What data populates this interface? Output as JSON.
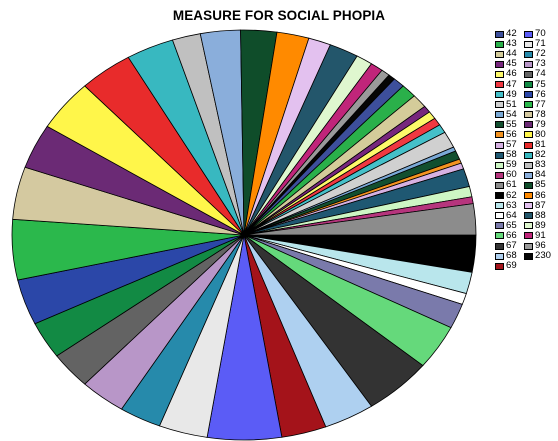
{
  "chart_data": {
    "type": "pie",
    "title": "MEASURE FOR SOCIAL PHOPIA",
    "slices": [
      {
        "label": "42",
        "value": 1,
        "color": "#3d4f9c"
      },
      {
        "label": "43",
        "value": 1,
        "color": "#2ab04a"
      },
      {
        "label": "44",
        "value": 1,
        "color": "#d4cc9a"
      },
      {
        "label": "45",
        "value": 1,
        "color": "#77277d"
      },
      {
        "label": "46",
        "value": 1,
        "color": "#fdf96a"
      },
      {
        "label": "47",
        "value": 1,
        "color": "#f03841"
      },
      {
        "label": "49",
        "value": 1,
        "color": "#45c0c9"
      },
      {
        "label": "51",
        "value": 1,
        "color": "#d0d0d0"
      },
      {
        "label": "54",
        "value": 1,
        "color": "#7aa9d6"
      },
      {
        "label": "55",
        "value": 1,
        "color": "#124f2f"
      },
      {
        "label": "56",
        "value": 1,
        "color": "#f39320"
      },
      {
        "label": "57",
        "value": 1,
        "color": "#d6b1e2"
      },
      {
        "label": "58",
        "value": 1,
        "color": "#1f5872"
      },
      {
        "label": "59",
        "value": 1,
        "color": "#cdf6c4"
      },
      {
        "label": "60",
        "value": 1,
        "color": "#b6357d"
      },
      {
        "label": "61",
        "value": 1,
        "color": "#8c8c8c"
      },
      {
        "label": "62",
        "value": 1,
        "color": "#000000"
      },
      {
        "label": "63",
        "value": 1,
        "color": "#b9e6ec"
      },
      {
        "label": "64",
        "value": 1,
        "color": "#ffffff"
      },
      {
        "label": "65",
        "value": 1,
        "color": "#7a7aab"
      },
      {
        "label": "66",
        "value": 1,
        "color": "#65d97b"
      },
      {
        "label": "67",
        "value": 1,
        "color": "#333333"
      },
      {
        "label": "68",
        "value": 1,
        "color": "#aed0f0"
      },
      {
        "label": "69",
        "value": 1,
        "color": "#a4131a"
      },
      {
        "label": "70",
        "value": 1,
        "color": "#5b5cf6"
      },
      {
        "label": "71",
        "value": 1,
        "color": "#e8e8e8"
      },
      {
        "label": "72",
        "value": 1,
        "color": "#268aab"
      },
      {
        "label": "73",
        "value": 1,
        "color": "#b896c8"
      },
      {
        "label": "74",
        "value": 1,
        "color": "#636363"
      },
      {
        "label": "75",
        "value": 1,
        "color": "#128a44"
      },
      {
        "label": "76",
        "value": 1,
        "color": "#2b47a8"
      },
      {
        "label": "77",
        "value": 1,
        "color": "#2bb84c"
      },
      {
        "label": "78",
        "value": 1,
        "color": "#d4c9a0"
      },
      {
        "label": "79",
        "value": 1,
        "color": "#6b2a75"
      },
      {
        "label": "80",
        "value": 1,
        "color": "#fff64a"
      },
      {
        "label": "81",
        "value": 1,
        "color": "#e82b2b"
      },
      {
        "label": "82",
        "value": 1,
        "color": "#38b8c0"
      },
      {
        "label": "83",
        "value": 1,
        "color": "#c0c0c0"
      },
      {
        "label": "84",
        "value": 1,
        "color": "#8aaedb"
      },
      {
        "label": "85",
        "value": 1,
        "color": "#0f4d2a"
      },
      {
        "label": "86",
        "value": 1,
        "color": "#ff8a00"
      },
      {
        "label": "87",
        "value": 1,
        "color": "#e3c1ef"
      },
      {
        "label": "88",
        "value": 1,
        "color": "#23566b"
      },
      {
        "label": "89",
        "value": 1,
        "color": "#dff7cf"
      },
      {
        "label": "91",
        "value": 1,
        "color": "#c0257a"
      },
      {
        "label": "96",
        "value": 1,
        "color": "#9a9a9a"
      },
      {
        "label": "230",
        "value": 1,
        "color": "#050505"
      }
    ]
  }
}
